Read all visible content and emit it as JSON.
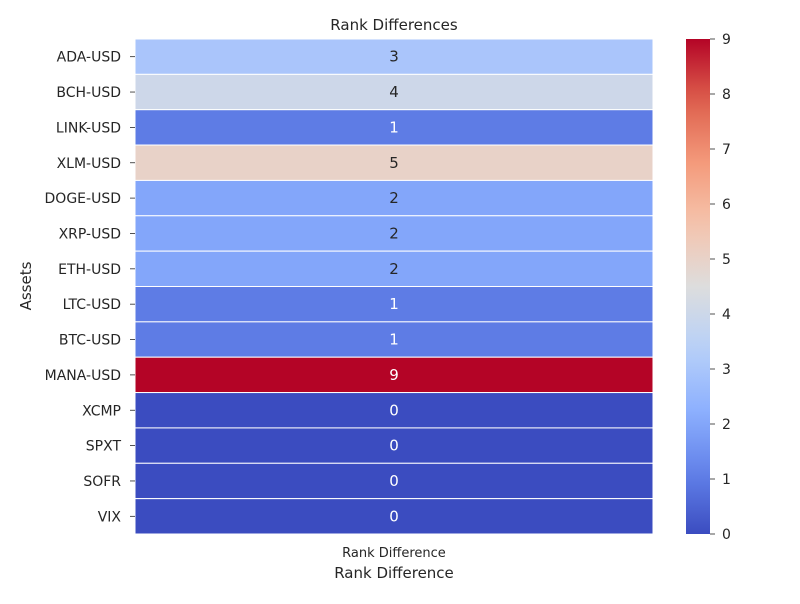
{
  "chart_data": {
    "type": "heatmap",
    "title": "Rank Differences",
    "xlabel": "Rank Difference",
    "ylabel": "Assets",
    "columns": [
      "Rank Difference"
    ],
    "rows": [
      "ADA-USD",
      "BCH-USD",
      "LINK-USD",
      "XLM-USD",
      "DOGE-USD",
      "XRP-USD",
      "ETH-USD",
      "LTC-USD",
      "BTC-USD",
      "MANA-USD",
      "XCMP",
      "SPXT",
      "SOFR",
      "VIX"
    ],
    "values": [
      [
        3
      ],
      [
        4
      ],
      [
        1
      ],
      [
        5
      ],
      [
        2
      ],
      [
        2
      ],
      [
        2
      ],
      [
        1
      ],
      [
        1
      ],
      [
        9
      ],
      [
        0
      ],
      [
        0
      ],
      [
        0
      ],
      [
        0
      ]
    ],
    "colormap": "coolwarm",
    "vmin": 0,
    "vmax": 9,
    "colorbar_ticks": [
      0,
      1,
      2,
      3,
      4,
      5,
      6,
      7,
      8,
      9
    ],
    "annotations": true,
    "grid": false
  }
}
